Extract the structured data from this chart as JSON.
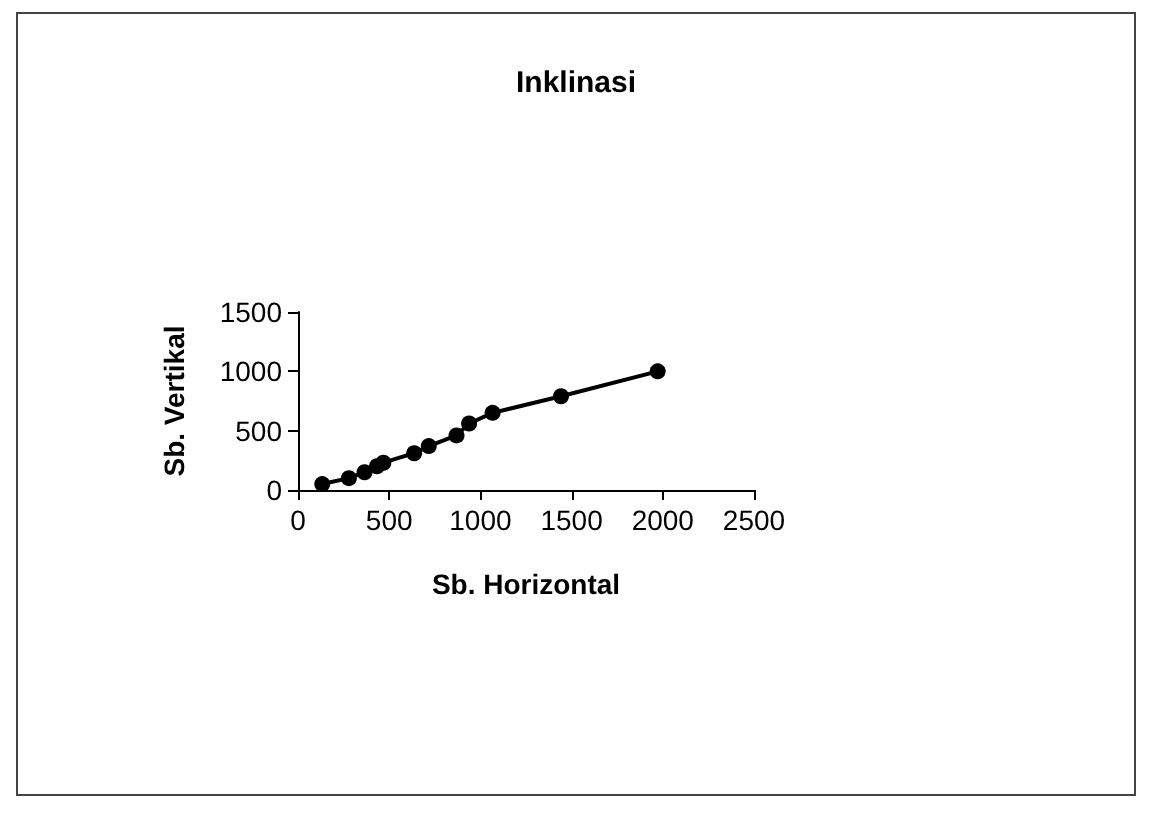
{
  "chart_data": {
    "type": "line",
    "title": "Inklinasi",
    "xlabel": "Sb. Horizontal",
    "ylabel": "Sb. Vertikal",
    "x": [
      133,
      279,
      365,
      433,
      468,
      637,
      717,
      869,
      938,
      1067,
      1442,
      1972
    ],
    "series": [
      {
        "color": "#000000",
        "values": [
          50,
          100,
          150,
          200,
          230,
          310,
          370,
          460,
          560,
          650,
          790,
          1000
        ]
      }
    ],
    "xlim": [
      0,
      2500
    ],
    "xticks": [
      0,
      500,
      1000,
      1500,
      2000,
      2500
    ],
    "ylim": [
      0,
      1500
    ],
    "yticks": [
      0,
      500,
      1000,
      1500
    ],
    "grid": false,
    "marker": "circle",
    "line_style": "solid"
  }
}
